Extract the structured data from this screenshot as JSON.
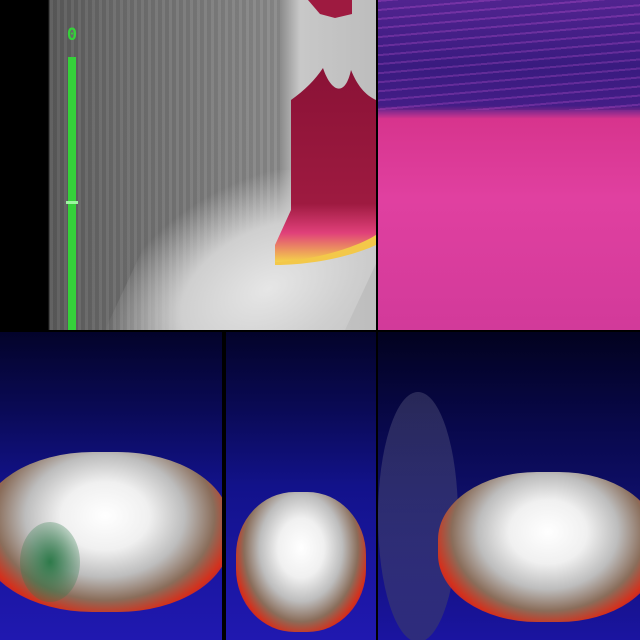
{
  "image": {
    "description_panels": 5
  },
  "panel_top_left": {
    "scale_label": "0",
    "colors": {
      "scale": "#35d13a",
      "hot_region": "#a0173f"
    }
  },
  "panel_top_right": {
    "colors": {
      "foreground": "#e040a0",
      "background": "#3d1f86"
    }
  },
  "panel_bottom": {
    "colors": {
      "hot": "#ffffff",
      "warm": "#d4301c",
      "cold": "#12128a"
    }
  }
}
